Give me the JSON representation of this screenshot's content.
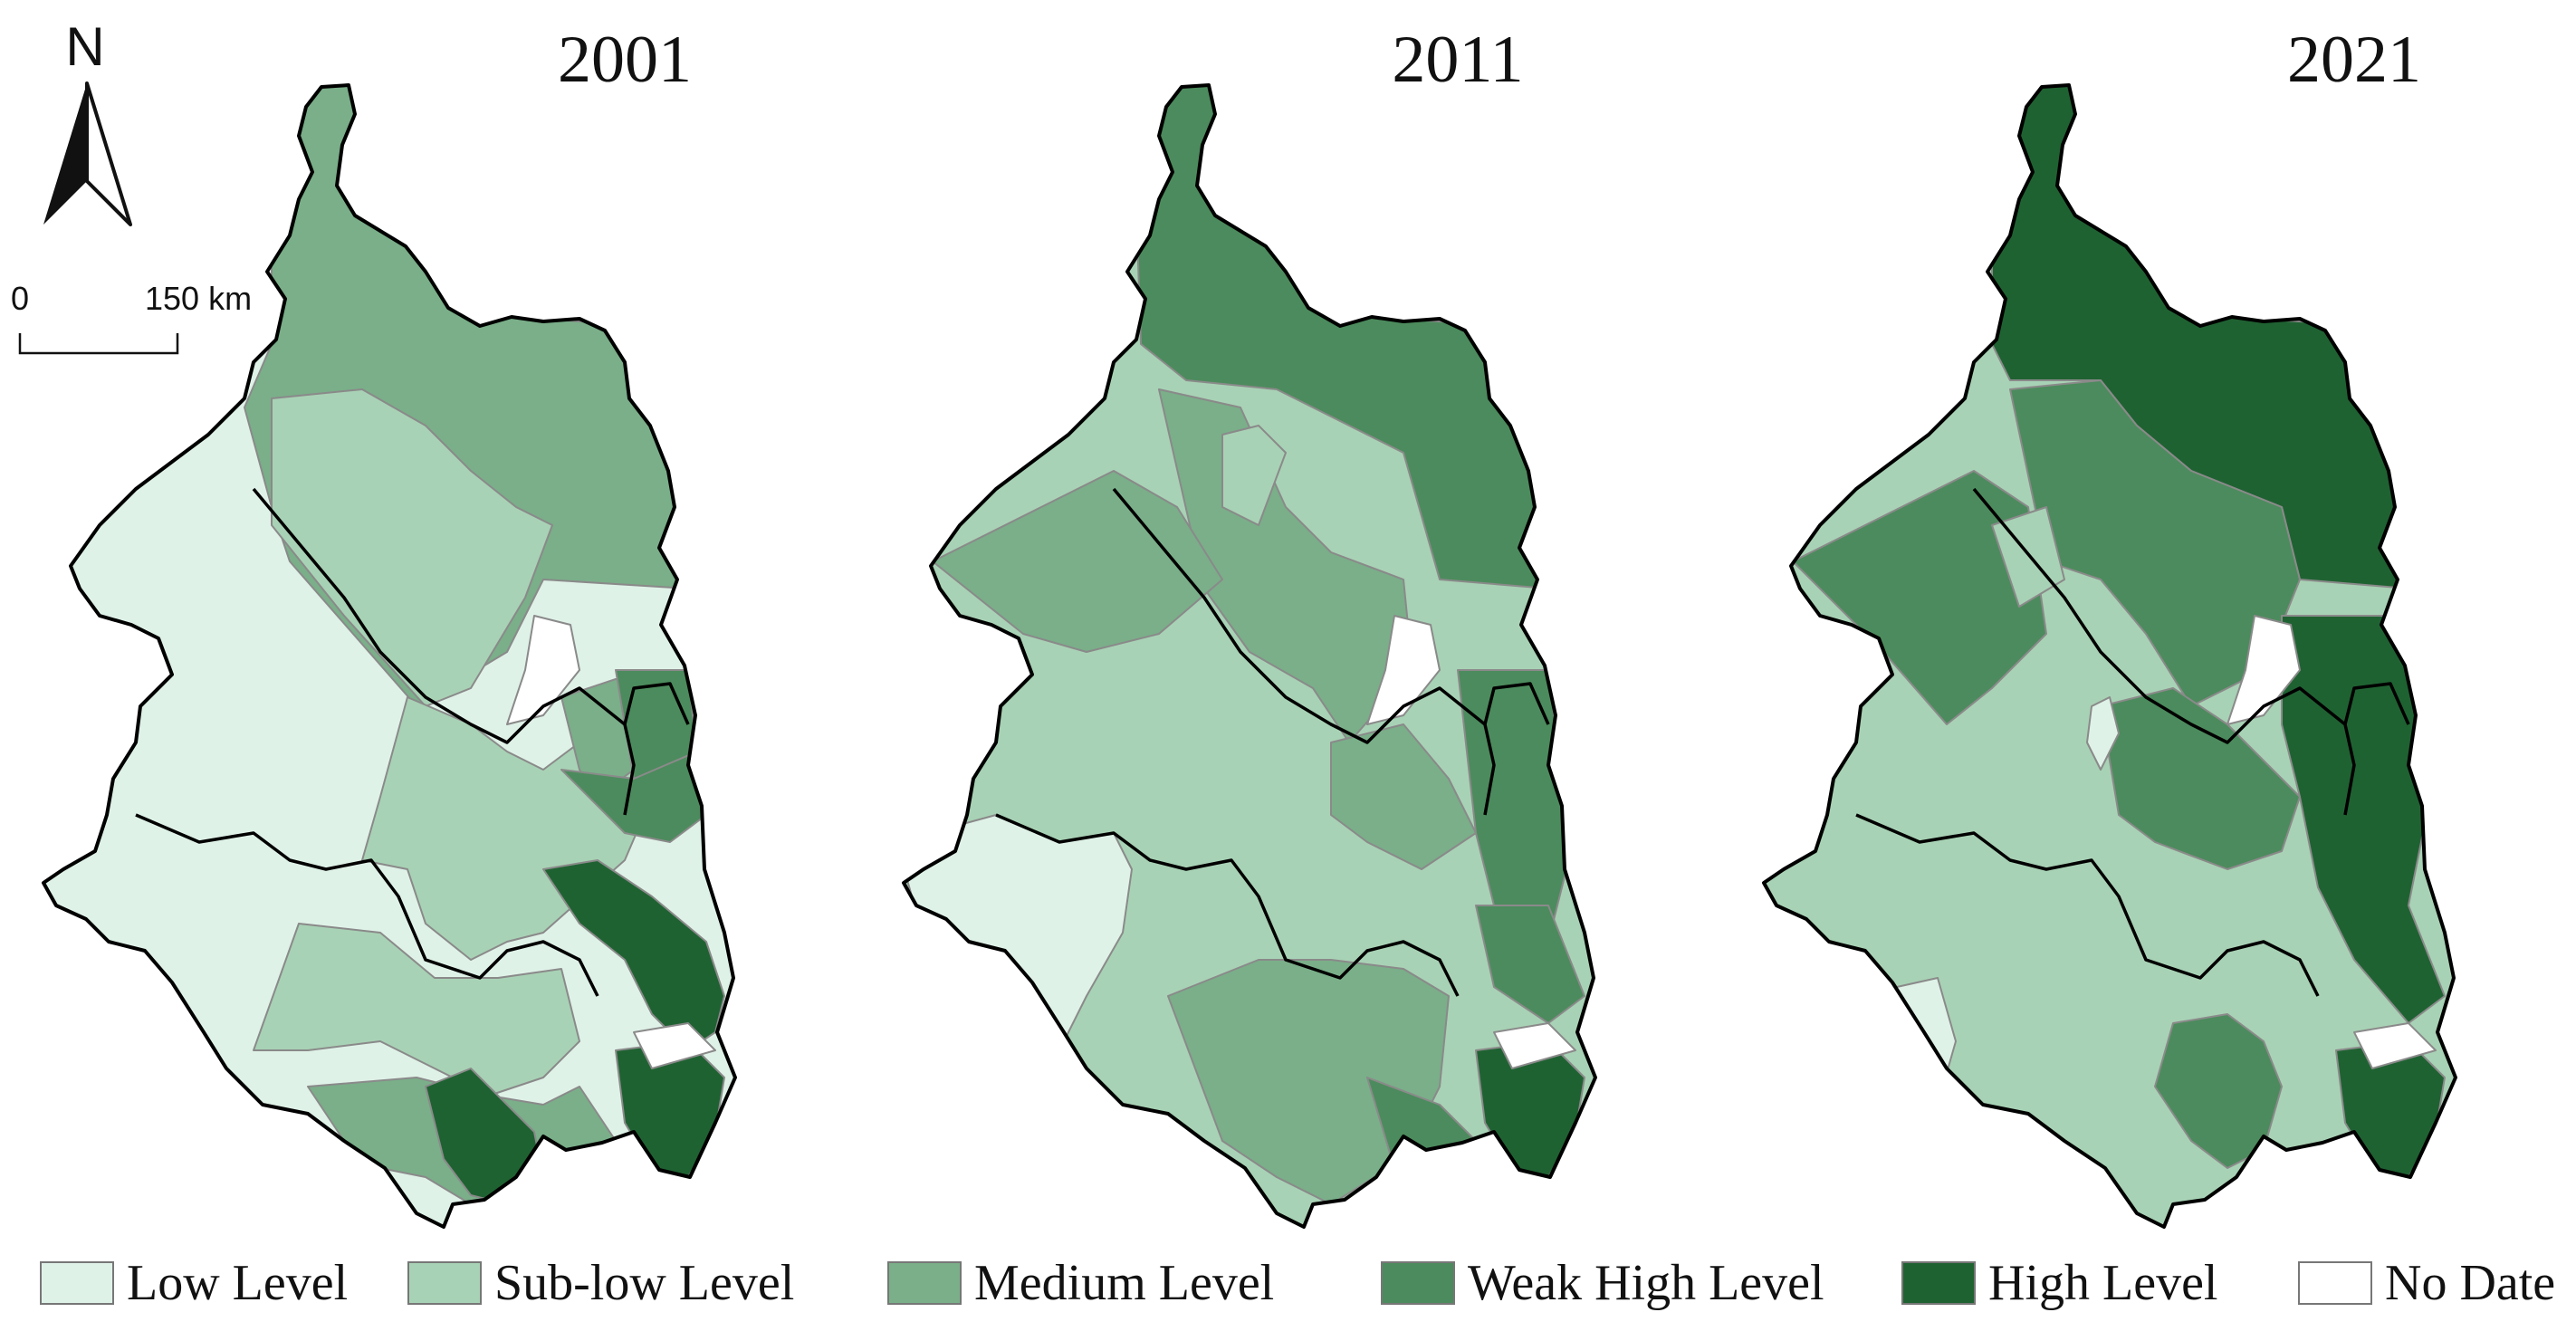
{
  "compass": {
    "letter": "N"
  },
  "scale_bar": {
    "zero": "0",
    "distance": "150 km"
  },
  "maps": [
    {
      "year": "2001"
    },
    {
      "year": "2011"
    },
    {
      "year": "2021"
    }
  ],
  "legend": [
    {
      "label": "Low Level",
      "color": "#dff2e8"
    },
    {
      "label": "Sub-low Level",
      "color": "#a8d2b5"
    },
    {
      "label": "Medium Level",
      "color": "#7aaf89"
    },
    {
      "label": "Weak High Level",
      "color": "#4c8b5d"
    },
    {
      "label": "High Level",
      "color": "#1f6232"
    },
    {
      "label": "No Date",
      "color": "#ffffff"
    }
  ]
}
